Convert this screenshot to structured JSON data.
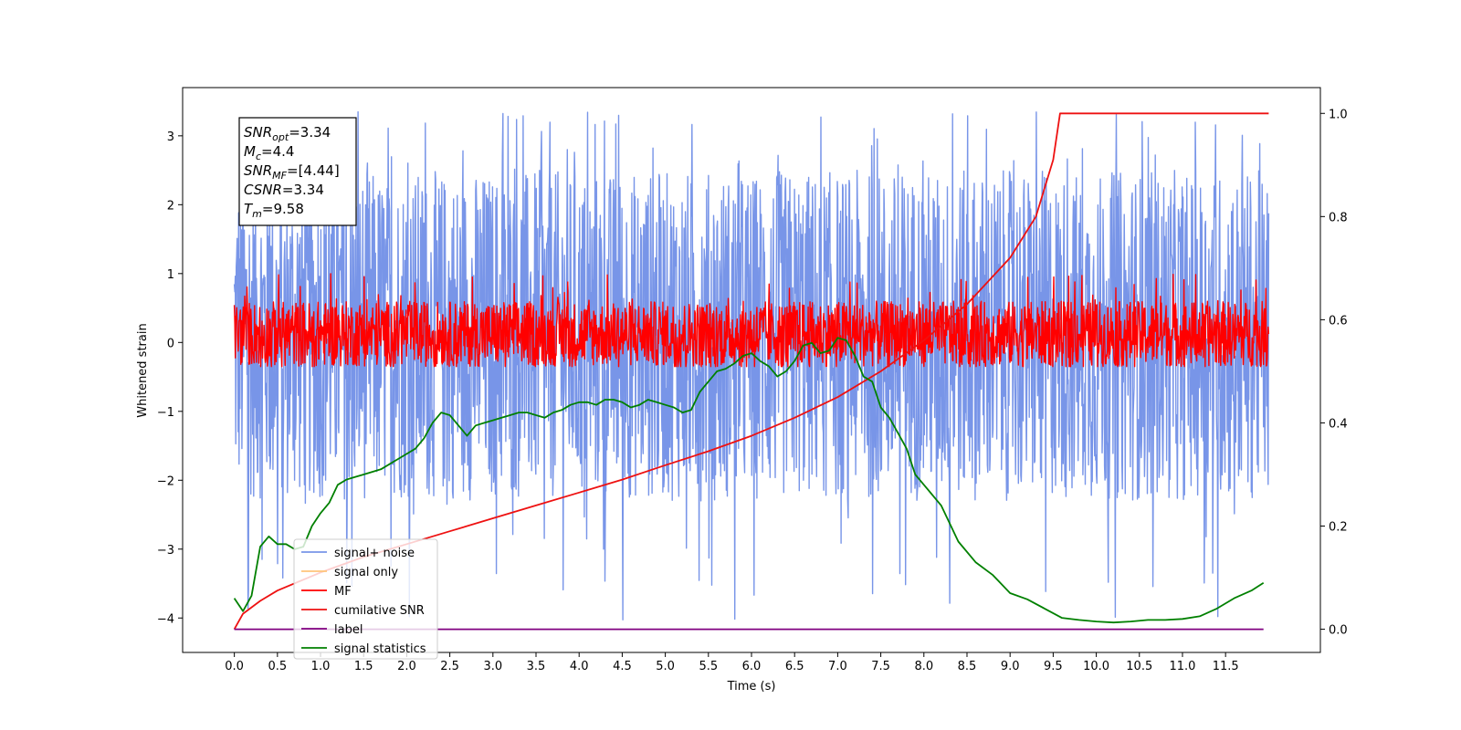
{
  "chart_data": {
    "type": "line",
    "title": "",
    "xlabel": "Time (s)",
    "ylabel": "Whitened strain",
    "y2label": "",
    "xlim": [
      -0.6,
      12.6
    ],
    "ylim": [
      -4.5,
      3.7
    ],
    "y2lim": [
      -0.045,
      1.05
    ],
    "xticks": [
      "0.0",
      "0.5",
      "1.0",
      "1.5",
      "2.0",
      "2.5",
      "3.0",
      "3.5",
      "4.0",
      "4.5",
      "5.0",
      "5.5",
      "6.0",
      "6.5",
      "7.0",
      "7.5",
      "8.0",
      "8.5",
      "9.0",
      "9.5",
      "10.0",
      "10.5",
      "11.0",
      "11.5"
    ],
    "yticks": [
      "3",
      "2",
      "1",
      "0",
      "−1",
      "−2",
      "−3",
      "−4"
    ],
    "y2ticks": [
      "1.0",
      "0.8",
      "0.6",
      "0.4",
      "0.2",
      "0.0"
    ],
    "grid": false,
    "legend_position": "lower-left",
    "annotation": [
      {
        "main": "SNR",
        "sub": "opt",
        "rest": "=3.34"
      },
      {
        "main": "M",
        "sub": "c",
        "rest": "=4.4"
      },
      {
        "main": "SNR",
        "sub": "MF",
        "rest": "=[4.44]"
      },
      {
        "main": "CSNR",
        "sub": "",
        "rest": "=3.34"
      },
      {
        "main": "T",
        "sub": "m",
        "rest": "=9.58"
      }
    ],
    "series": [
      {
        "name": "signal+ noise",
        "color": "#7895e8",
        "axis": "left",
        "kind": "noise",
        "x_range": [
          0.0,
          12.0
        ],
        "y_band": [
          -2.3,
          2.5
        ],
        "y_extremes": [
          -4.1,
          3.35
        ]
      },
      {
        "name": "signal only",
        "color": "#ffc47a",
        "axis": "left",
        "kind": "hidden"
      },
      {
        "name": "MF",
        "color": "#ff0000",
        "axis": "left",
        "kind": "noise",
        "x_range": [
          0.0,
          12.0
        ],
        "y_band": [
          -0.35,
          0.6
        ],
        "y_extremes": [
          -0.35,
          1.0
        ]
      },
      {
        "name": "cumilative SNR",
        "color": "#ee1111",
        "axis": "right",
        "kind": "curve",
        "x": [
          0.0,
          0.1,
          0.3,
          0.5,
          1.0,
          1.5,
          2.0,
          2.5,
          3.0,
          3.5,
          4.0,
          4.5,
          5.0,
          5.5,
          6.0,
          6.5,
          7.0,
          7.5,
          8.0,
          8.5,
          9.0,
          9.3,
          9.5,
          9.58,
          12.0
        ],
        "y": [
          0.0,
          0.03,
          0.055,
          0.075,
          0.11,
          0.14,
          0.165,
          0.19,
          0.215,
          0.24,
          0.265,
          0.29,
          0.318,
          0.345,
          0.375,
          0.41,
          0.45,
          0.5,
          0.56,
          0.63,
          0.72,
          0.8,
          0.91,
          1.0,
          1.0
        ]
      },
      {
        "name": "label",
        "color": "#800080",
        "axis": "right",
        "kind": "curve",
        "x": [
          0.0,
          11.94
        ],
        "y": [
          0.0,
          0.0
        ]
      },
      {
        "name": "signal statistics",
        "color": "#008000",
        "axis": "right",
        "kind": "curve",
        "x": [
          0.0,
          0.1,
          0.2,
          0.3,
          0.4,
          0.5,
          0.6,
          0.7,
          0.8,
          0.9,
          1.0,
          1.1,
          1.2,
          1.3,
          1.4,
          1.5,
          1.6,
          1.7,
          1.8,
          1.9,
          2.0,
          2.1,
          2.2,
          2.3,
          2.4,
          2.5,
          2.6,
          2.7,
          2.8,
          2.9,
          3.0,
          3.1,
          3.2,
          3.3,
          3.4,
          3.5,
          3.6,
          3.7,
          3.8,
          3.9,
          4.0,
          4.1,
          4.2,
          4.3,
          4.4,
          4.5,
          4.6,
          4.7,
          4.8,
          4.9,
          5.0,
          5.1,
          5.2,
          5.3,
          5.4,
          5.5,
          5.6,
          5.7,
          5.8,
          5.9,
          6.0,
          6.1,
          6.2,
          6.3,
          6.4,
          6.5,
          6.6,
          6.7,
          6.8,
          6.9,
          7.0,
          7.1,
          7.2,
          7.3,
          7.4,
          7.5,
          7.6,
          7.7,
          7.8,
          7.9,
          8.0,
          8.2,
          8.4,
          8.6,
          8.8,
          9.0,
          9.2,
          9.4,
          9.6,
          9.8,
          10.0,
          10.2,
          10.4,
          10.6,
          10.8,
          11.0,
          11.2,
          11.4,
          11.6,
          11.8,
          11.94
        ],
        "y": [
          0.06,
          0.035,
          0.065,
          0.16,
          0.18,
          0.165,
          0.165,
          0.155,
          0.16,
          0.2,
          0.225,
          0.245,
          0.28,
          0.29,
          0.295,
          0.3,
          0.305,
          0.31,
          0.32,
          0.33,
          0.34,
          0.35,
          0.37,
          0.4,
          0.42,
          0.415,
          0.395,
          0.375,
          0.395,
          0.4,
          0.405,
          0.41,
          0.415,
          0.42,
          0.42,
          0.415,
          0.41,
          0.42,
          0.425,
          0.435,
          0.44,
          0.44,
          0.435,
          0.445,
          0.445,
          0.44,
          0.43,
          0.435,
          0.445,
          0.44,
          0.435,
          0.43,
          0.42,
          0.425,
          0.46,
          0.48,
          0.5,
          0.505,
          0.515,
          0.53,
          0.535,
          0.52,
          0.51,
          0.49,
          0.5,
          0.52,
          0.55,
          0.555,
          0.535,
          0.54,
          0.565,
          0.56,
          0.53,
          0.49,
          0.48,
          0.43,
          0.41,
          0.38,
          0.35,
          0.3,
          0.28,
          0.24,
          0.17,
          0.13,
          0.105,
          0.07,
          0.058,
          0.04,
          0.022,
          0.018,
          0.015,
          0.013,
          0.015,
          0.018,
          0.018,
          0.02,
          0.025,
          0.04,
          0.06,
          0.075,
          0.09
        ]
      }
    ]
  }
}
